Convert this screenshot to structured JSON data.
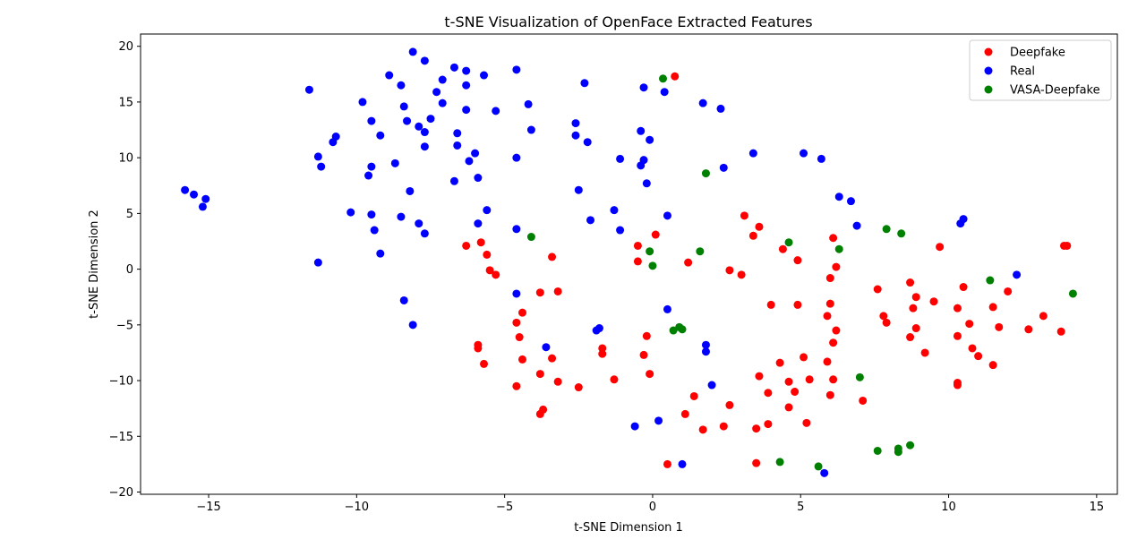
{
  "chart_data": {
    "type": "scatter",
    "title": "t-SNE Visualization of OpenFace Extracted Features",
    "xlabel": "t-SNE Dimension 1",
    "ylabel": "t-SNE Dimension 2",
    "xlim": [
      -17.3,
      15.7
    ],
    "ylim": [
      -20.2,
      21.1
    ],
    "xticks": [
      -15,
      -10,
      -5,
      0,
      5,
      10,
      15
    ],
    "yticks": [
      20,
      15,
      10,
      5,
      0,
      -5,
      -10,
      -15,
      -20
    ],
    "xtick_labels": [
      "−15",
      "−10",
      "−5",
      "0",
      "5",
      "10",
      "15"
    ],
    "ytick_labels": [
      "20",
      "15",
      "10",
      "5",
      "0",
      "−5",
      "−10",
      "−15",
      "−20"
    ],
    "grid": false,
    "legend": "top-right",
    "series": [
      {
        "name": "Deepfake",
        "color": "#ff0000",
        "points": [
          [
            0.75,
            17.3
          ],
          [
            -6.3,
            2.1
          ],
          [
            -5.8,
            2.4
          ],
          [
            -5.6,
            1.3
          ],
          [
            -5.5,
            -0.1
          ],
          [
            -5.3,
            -0.5
          ],
          [
            -3.4,
            1.1
          ],
          [
            -3.8,
            -2.1
          ],
          [
            -3.2,
            -2.0
          ],
          [
            -4.6,
            -4.8
          ],
          [
            -4.4,
            -3.9
          ],
          [
            -4.5,
            -6.1
          ],
          [
            -5.9,
            -6.8
          ],
          [
            -5.9,
            -7.1
          ],
          [
            -5.7,
            -8.5
          ],
          [
            -4.4,
            -8.1
          ],
          [
            -3.8,
            -9.4
          ],
          [
            -3.4,
            -8.0
          ],
          [
            -3.2,
            -10.1
          ],
          [
            -4.6,
            -10.5
          ],
          [
            -3.7,
            -12.6
          ],
          [
            -3.8,
            -13.0
          ],
          [
            -2.5,
            -10.6
          ],
          [
            -1.7,
            -7.1
          ],
          [
            -1.7,
            -7.6
          ],
          [
            -1.3,
            -9.9
          ],
          [
            -0.3,
            -7.7
          ],
          [
            -0.2,
            -6.0
          ],
          [
            -0.1,
            -9.4
          ],
          [
            -0.5,
            0.7
          ],
          [
            -0.5,
            2.1
          ],
          [
            0.1,
            3.1
          ],
          [
            1.2,
            0.6
          ],
          [
            2.6,
            -0.1
          ],
          [
            3.0,
            -0.5
          ],
          [
            3.1,
            4.8
          ],
          [
            3.4,
            3.0
          ],
          [
            3.6,
            3.8
          ],
          [
            4.0,
            -3.2
          ],
          [
            4.4,
            1.8
          ],
          [
            4.9,
            0.8
          ],
          [
            4.9,
            -3.2
          ],
          [
            3.6,
            -9.6
          ],
          [
            4.3,
            -8.4
          ],
          [
            4.6,
            -10.1
          ],
          [
            4.8,
            -11.0
          ],
          [
            5.1,
            -7.9
          ],
          [
            5.3,
            -9.9
          ],
          [
            3.9,
            -11.1
          ],
          [
            3.5,
            -14.3
          ],
          [
            3.9,
            -13.9
          ],
          [
            4.6,
            -12.4
          ],
          [
            5.2,
            -13.8
          ],
          [
            2.6,
            -12.2
          ],
          [
            2.4,
            -14.1
          ],
          [
            1.7,
            -14.4
          ],
          [
            1.4,
            -11.4
          ],
          [
            1.1,
            -13.0
          ],
          [
            0.5,
            -17.5
          ],
          [
            3.5,
            -17.4
          ],
          [
            5.9,
            -4.2
          ],
          [
            6.0,
            -0.8
          ],
          [
            6.0,
            -3.1
          ],
          [
            6.1,
            2.8
          ],
          [
            6.2,
            0.2
          ],
          [
            6.2,
            -5.5
          ],
          [
            6.1,
            -6.6
          ],
          [
            5.9,
            -8.3
          ],
          [
            6.0,
            -11.3
          ],
          [
            6.1,
            -9.9
          ],
          [
            7.1,
            -11.8
          ],
          [
            7.6,
            -1.8
          ],
          [
            7.8,
            -4.2
          ],
          [
            7.9,
            -4.8
          ],
          [
            8.7,
            -1.2
          ],
          [
            8.8,
            -3.5
          ],
          [
            8.9,
            -2.5
          ],
          [
            8.7,
            -6.1
          ],
          [
            8.9,
            -5.3
          ],
          [
            9.5,
            -2.9
          ],
          [
            9.7,
            2.0
          ],
          [
            9.2,
            -7.5
          ],
          [
            10.3,
            -3.5
          ],
          [
            10.5,
            -1.6
          ],
          [
            10.3,
            -6.0
          ],
          [
            10.7,
            -4.9
          ],
          [
            10.8,
            -7.1
          ],
          [
            11.0,
            -7.8
          ],
          [
            10.3,
            -10.2
          ],
          [
            10.3,
            -10.4
          ],
          [
            11.5,
            -3.4
          ],
          [
            11.7,
            -5.2
          ],
          [
            12.0,
            -2.0
          ],
          [
            11.5,
            -8.6
          ],
          [
            12.7,
            -5.4
          ],
          [
            13.2,
            -4.2
          ],
          [
            13.8,
            -5.6
          ],
          [
            14.0,
            2.1
          ],
          [
            13.9,
            2.1
          ]
        ]
      },
      {
        "name": "Real",
        "color": "#0000ff",
        "points": [
          [
            -15.8,
            7.1
          ],
          [
            -15.5,
            6.7
          ],
          [
            -15.1,
            6.3
          ],
          [
            -15.2,
            5.6
          ],
          [
            -11.6,
            16.1
          ],
          [
            -11.3,
            10.1
          ],
          [
            -11.2,
            9.2
          ],
          [
            -11.3,
            0.6
          ],
          [
            -10.8,
            11.4
          ],
          [
            -10.7,
            11.9
          ],
          [
            -10.2,
            5.1
          ],
          [
            -9.8,
            15.0
          ],
          [
            -9.5,
            13.3
          ],
          [
            -9.6,
            8.4
          ],
          [
            -9.5,
            9.2
          ],
          [
            -9.5,
            4.9
          ],
          [
            -9.4,
            3.5
          ],
          [
            -9.2,
            12.0
          ],
          [
            -9.2,
            1.4
          ],
          [
            -8.9,
            17.4
          ],
          [
            -8.7,
            9.5
          ],
          [
            -8.5,
            16.5
          ],
          [
            -8.4,
            14.6
          ],
          [
            -8.3,
            13.3
          ],
          [
            -8.2,
            7.0
          ],
          [
            -8.5,
            4.7
          ],
          [
            -8.4,
            -2.8
          ],
          [
            -8.1,
            -5.0
          ],
          [
            -8.1,
            19.5
          ],
          [
            -7.7,
            18.7
          ],
          [
            -7.9,
            12.8
          ],
          [
            -7.7,
            12.3
          ],
          [
            -7.7,
            11.0
          ],
          [
            -7.5,
            13.5
          ],
          [
            -7.9,
            4.1
          ],
          [
            -7.7,
            3.2
          ],
          [
            -7.3,
            15.9
          ],
          [
            -7.1,
            17.0
          ],
          [
            -7.1,
            14.9
          ],
          [
            -6.7,
            18.1
          ],
          [
            -6.6,
            12.2
          ],
          [
            -6.6,
            11.1
          ],
          [
            -6.7,
            7.9
          ],
          [
            -6.3,
            17.8
          ],
          [
            -6.3,
            16.5
          ],
          [
            -6.3,
            14.3
          ],
          [
            -6.2,
            9.7
          ],
          [
            -6.0,
            10.4
          ],
          [
            -5.9,
            8.2
          ],
          [
            -5.9,
            4.1
          ],
          [
            -5.7,
            17.4
          ],
          [
            -5.6,
            5.3
          ],
          [
            -5.3,
            14.2
          ],
          [
            -4.6,
            17.9
          ],
          [
            -4.6,
            10.0
          ],
          [
            -4.6,
            3.6
          ],
          [
            -4.6,
            -2.2
          ],
          [
            -4.2,
            14.8
          ],
          [
            -4.1,
            12.5
          ],
          [
            -3.6,
            -7.0
          ],
          [
            -2.6,
            13.1
          ],
          [
            -2.6,
            12.0
          ],
          [
            -2.3,
            16.7
          ],
          [
            -2.2,
            11.4
          ],
          [
            -2.5,
            7.1
          ],
          [
            -2.1,
            4.4
          ],
          [
            -1.9,
            -5.5
          ],
          [
            -1.8,
            -5.3
          ],
          [
            -1.3,
            5.3
          ],
          [
            -1.1,
            9.9
          ],
          [
            -1.1,
            3.5
          ],
          [
            -0.6,
            -14.1
          ],
          [
            -0.4,
            12.4
          ],
          [
            -0.4,
            9.3
          ],
          [
            -0.3,
            9.8
          ],
          [
            -0.3,
            16.3
          ],
          [
            -0.2,
            7.7
          ],
          [
            -0.1,
            11.6
          ],
          [
            0.4,
            15.9
          ],
          [
            0.5,
            4.8
          ],
          [
            0.5,
            -3.6
          ],
          [
            0.2,
            -13.6
          ],
          [
            1.0,
            -17.5
          ],
          [
            1.7,
            14.9
          ],
          [
            1.8,
            -6.8
          ],
          [
            1.8,
            -7.4
          ],
          [
            2.0,
            -10.4
          ],
          [
            2.3,
            14.4
          ],
          [
            2.4,
            9.1
          ],
          [
            3.4,
            10.4
          ],
          [
            5.1,
            10.4
          ],
          [
            5.7,
            9.9
          ],
          [
            5.8,
            -18.3
          ],
          [
            6.3,
            6.5
          ],
          [
            6.7,
            6.1
          ],
          [
            6.9,
            3.9
          ],
          [
            10.4,
            4.1
          ],
          [
            10.5,
            4.5
          ],
          [
            12.3,
            -0.5
          ]
        ]
      },
      {
        "name": "VASA-Deepfake",
        "color": "#008000",
        "points": [
          [
            0.35,
            17.1
          ],
          [
            -4.1,
            2.9
          ],
          [
            -0.1,
            1.6
          ],
          [
            0.0,
            0.3
          ],
          [
            1.6,
            1.6
          ],
          [
            1.8,
            8.6
          ],
          [
            0.7,
            -5.5
          ],
          [
            0.9,
            -5.2
          ],
          [
            1.0,
            -5.4
          ],
          [
            4.6,
            2.4
          ],
          [
            6.3,
            1.8
          ],
          [
            7.0,
            -9.7
          ],
          [
            7.9,
            3.6
          ],
          [
            8.4,
            3.2
          ],
          [
            11.4,
            -1.0
          ],
          [
            14.2,
            -2.2
          ],
          [
            4.3,
            -17.3
          ],
          [
            5.6,
            -17.7
          ],
          [
            7.6,
            -16.3
          ],
          [
            8.3,
            -16.1
          ],
          [
            8.3,
            -16.4
          ],
          [
            8.7,
            -15.8
          ]
        ]
      }
    ]
  }
}
